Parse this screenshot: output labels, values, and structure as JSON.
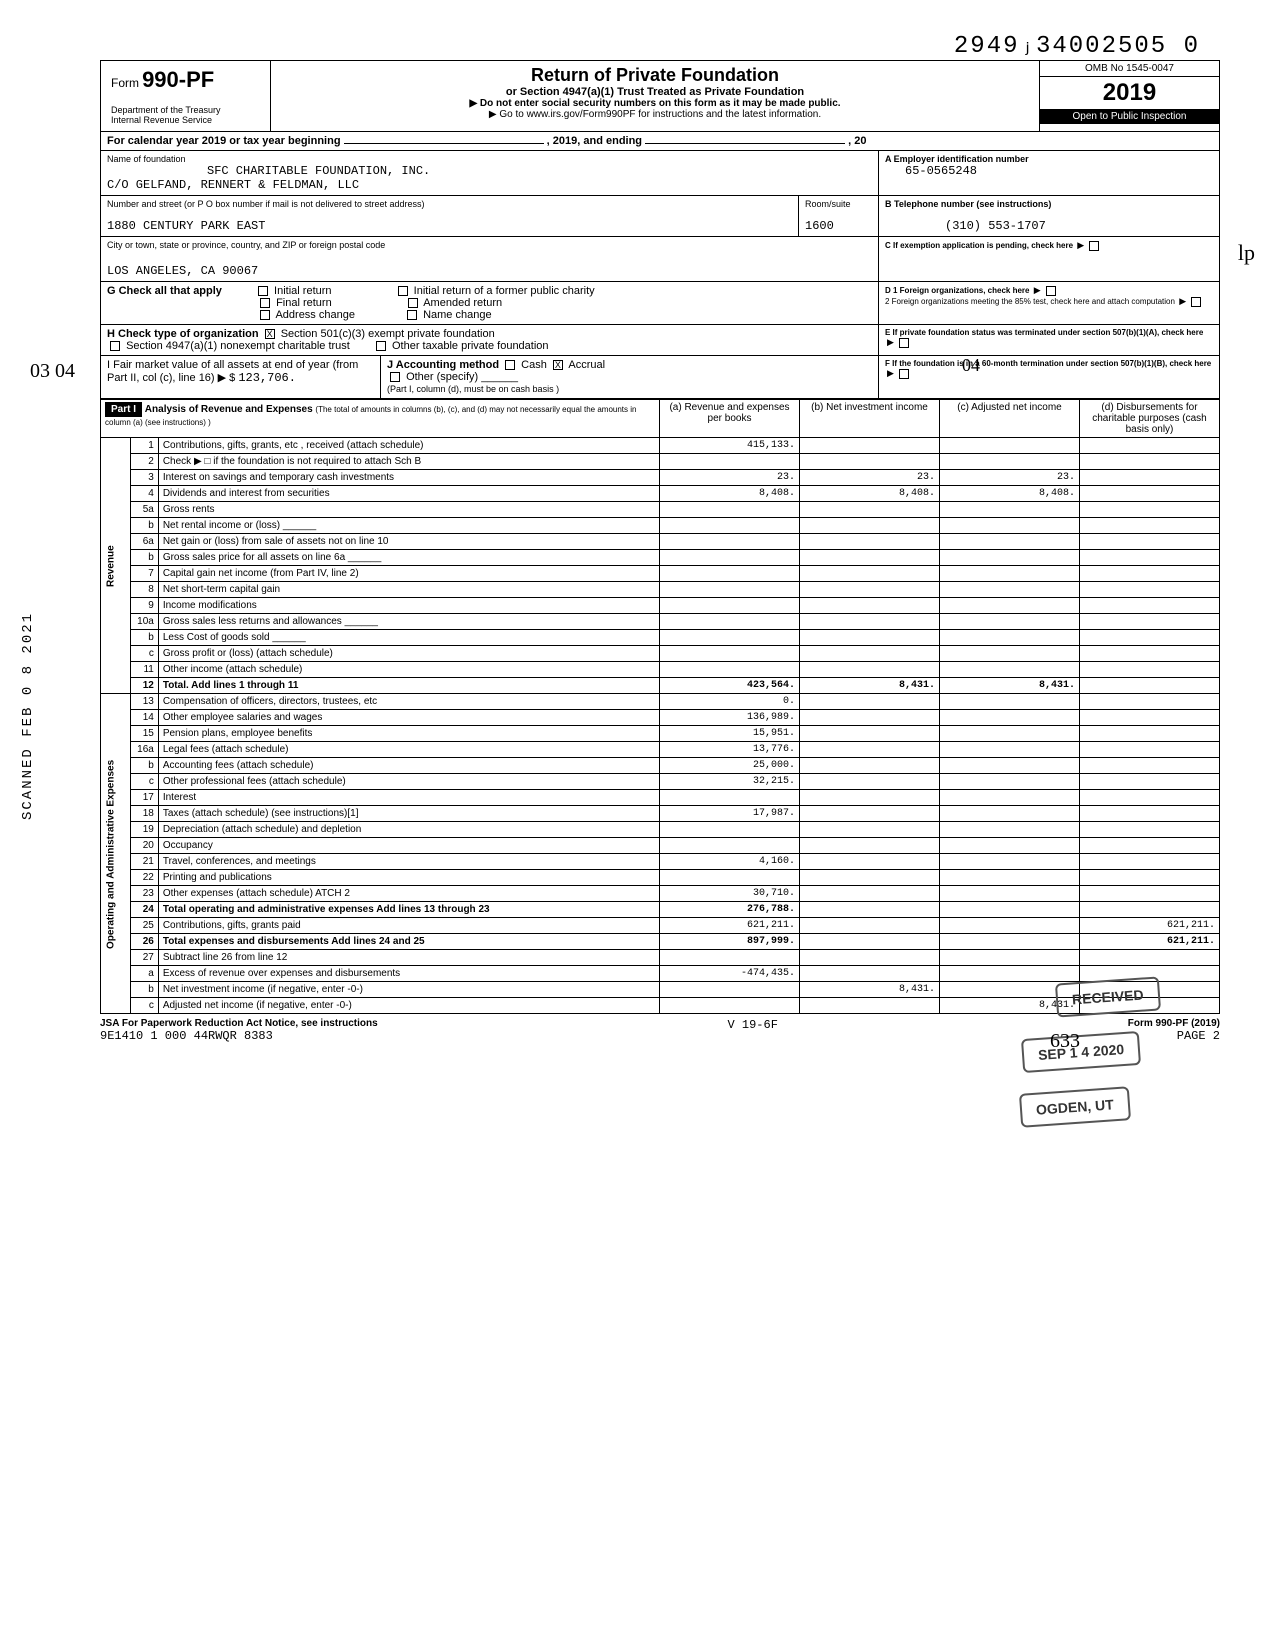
{
  "document_id": "2949ⱼ34002505  0",
  "scanned_label": "SCANNED FEB 0 8 2021",
  "handwritten_margin": "03\n04",
  "handwritten_04": "04",
  "handwritten_lp": "lp",
  "form": {
    "prefix": "Form",
    "number": "990-PF",
    "dept": "Department of the Treasury\nInternal Revenue Service",
    "title": "Return of Private Foundation",
    "subtitle": "or Section 4947(a)(1) Trust Treated as Private Foundation",
    "note1": "▶ Do not enter social security numbers on this form as it may be made public.",
    "note2": "▶ Go to www.irs.gov/Form990PF for instructions and the latest information.",
    "omb": "OMB No 1545-0047",
    "year": "2019",
    "open_text": "Open to Public Inspection"
  },
  "calendar_line": "For calendar year 2019 or tax year beginning",
  "calendar_mid": ", 2019, and ending",
  "calendar_end": ", 20",
  "foundation": {
    "name_label": "Name of foundation",
    "name": "SFC CHARITABLE FOUNDATION, INC.",
    "care_of": "C/O GELFAND, RENNERT & FELDMAN, LLC",
    "addr_label": "Number and street (or P O box number if mail is not delivered to street address)",
    "street": "1880 CENTURY PARK EAST",
    "room_label": "Room/suite",
    "room": "1600",
    "city_label": "City or town, state or province, country, and ZIP or foreign postal code",
    "city": "LOS ANGELES, CA 90067",
    "ein_label": "A  Employer identification number",
    "ein": "65-0565248",
    "phone_label": "B  Telephone number (see instructions)",
    "phone": "(310) 553-1707",
    "c_label": "C  If exemption application is pending, check here",
    "d1_label": "D 1  Foreign organizations, check here",
    "d2_label": "2  Foreign organizations meeting the 85% test, check here and attach computation",
    "e_label": "E  If private foundation status was terminated under section 507(b)(1)(A), check here",
    "f_label": "F  If the foundation is in a 60-month termination under section 507(b)(1)(B), check here"
  },
  "g_label": "G  Check all that apply",
  "g_opts": {
    "initial": "Initial return",
    "initial_former": "Initial return of a former public charity",
    "final": "Final return",
    "amended": "Amended return",
    "addr_change": "Address change",
    "name_change": "Name change"
  },
  "h_label": "H  Check type of organization",
  "h_opts": {
    "501c3": "Section 501(c)(3) exempt private foundation",
    "4947": "Section 4947(a)(1) nonexempt charitable trust",
    "other_tax": "Other taxable private foundation"
  },
  "i_label": "I  Fair market value of all assets at end of year (from Part II, col (c), line 16) ▶ $",
  "i_value": "123,706.",
  "j_label": "J Accounting method",
  "j_cash": "Cash",
  "j_accrual": "Accrual",
  "j_other": "Other (specify)",
  "j_note": "(Part I, column (d), must be on cash basis )",
  "part1": {
    "label": "Part I",
    "title": "Analysis of Revenue and Expenses",
    "note": "(The total of amounts in columns (b), (c), and (d) may not necessarily equal the amounts in column (a) (see instructions) )",
    "col_a": "(a) Revenue and expenses per books",
    "col_b": "(b) Net investment income",
    "col_c": "(c) Adjusted net income",
    "col_d": "(d) Disbursements for charitable purposes (cash basis only)"
  },
  "section_labels": {
    "revenue": "Revenue",
    "expenses": "Operating and Administrative Expenses"
  },
  "lines": [
    {
      "num": "1",
      "desc": "Contributions, gifts, grants, etc , received (attach schedule)",
      "a": "415,133.",
      "b": "",
      "c": "",
      "d": ""
    },
    {
      "num": "2",
      "desc": "Check ▶ □ if the foundation is not required to attach Sch B",
      "a": "",
      "b": "",
      "c": "",
      "d": ""
    },
    {
      "num": "3",
      "desc": "Interest on savings and temporary cash investments",
      "a": "23.",
      "b": "23.",
      "c": "23.",
      "d": ""
    },
    {
      "num": "4",
      "desc": "Dividends and interest from securities",
      "a": "8,408.",
      "b": "8,408.",
      "c": "8,408.",
      "d": ""
    },
    {
      "num": "5a",
      "desc": "Gross rents",
      "a": "",
      "b": "",
      "c": "",
      "d": ""
    },
    {
      "num": "b",
      "desc": "Net rental income or (loss) ______",
      "a": "",
      "b": "",
      "c": "",
      "d": ""
    },
    {
      "num": "6a",
      "desc": "Net gain or (loss) from sale of assets not on line 10",
      "a": "",
      "b": "",
      "c": "",
      "d": ""
    },
    {
      "num": "b",
      "desc": "Gross sales price for all assets on line 6a ______",
      "a": "",
      "b": "",
      "c": "",
      "d": ""
    },
    {
      "num": "7",
      "desc": "Capital gain net income (from Part IV, line 2)",
      "a": "",
      "b": "",
      "c": "",
      "d": ""
    },
    {
      "num": "8",
      "desc": "Net short-term capital gain",
      "a": "",
      "b": "",
      "c": "",
      "d": ""
    },
    {
      "num": "9",
      "desc": "Income modifications",
      "a": "",
      "b": "",
      "c": "",
      "d": ""
    },
    {
      "num": "10a",
      "desc": "Gross sales less returns and allowances ______",
      "a": "",
      "b": "",
      "c": "",
      "d": ""
    },
    {
      "num": "b",
      "desc": "Less Cost of goods sold ______",
      "a": "",
      "b": "",
      "c": "",
      "d": ""
    },
    {
      "num": "c",
      "desc": "Gross profit or (loss) (attach schedule)",
      "a": "",
      "b": "",
      "c": "",
      "d": ""
    },
    {
      "num": "11",
      "desc": "Other income (attach schedule)",
      "a": "",
      "b": "",
      "c": "",
      "d": ""
    },
    {
      "num": "12",
      "desc": "Total. Add lines 1 through 11",
      "a": "423,564.",
      "b": "8,431.",
      "c": "8,431.",
      "d": "",
      "bold": true
    },
    {
      "num": "13",
      "desc": "Compensation of officers, directors, trustees, etc",
      "a": "0.",
      "b": "",
      "c": "",
      "d": ""
    },
    {
      "num": "14",
      "desc": "Other employee salaries and wages",
      "a": "136,989.",
      "b": "",
      "c": "",
      "d": ""
    },
    {
      "num": "15",
      "desc": "Pension plans, employee benefits",
      "a": "15,951.",
      "b": "",
      "c": "",
      "d": ""
    },
    {
      "num": "16a",
      "desc": "Legal fees (attach schedule)",
      "a": "13,776.",
      "b": "",
      "c": "",
      "d": ""
    },
    {
      "num": "b",
      "desc": "Accounting fees (attach schedule)",
      "a": "25,000.",
      "b": "",
      "c": "",
      "d": ""
    },
    {
      "num": "c",
      "desc": "Other professional fees (attach schedule)",
      "a": "32,215.",
      "b": "",
      "c": "",
      "d": ""
    },
    {
      "num": "17",
      "desc": "Interest",
      "a": "",
      "b": "",
      "c": "",
      "d": ""
    },
    {
      "num": "18",
      "desc": "Taxes (attach schedule) (see instructions)[1]",
      "a": "17,987.",
      "b": "",
      "c": "",
      "d": ""
    },
    {
      "num": "19",
      "desc": "Depreciation (attach schedule) and depletion",
      "a": "",
      "b": "",
      "c": "",
      "d": ""
    },
    {
      "num": "20",
      "desc": "Occupancy",
      "a": "",
      "b": "",
      "c": "",
      "d": ""
    },
    {
      "num": "21",
      "desc": "Travel, conferences, and meetings",
      "a": "4,160.",
      "b": "",
      "c": "",
      "d": ""
    },
    {
      "num": "22",
      "desc": "Printing and publications",
      "a": "",
      "b": "",
      "c": "",
      "d": ""
    },
    {
      "num": "23",
      "desc": "Other expenses (attach schedule) ATCH 2",
      "a": "30,710.",
      "b": "",
      "c": "",
      "d": ""
    },
    {
      "num": "24",
      "desc": "Total operating and administrative expenses Add lines 13 through 23",
      "a": "276,788.",
      "b": "",
      "c": "",
      "d": "",
      "bold": true
    },
    {
      "num": "25",
      "desc": "Contributions, gifts, grants paid",
      "a": "621,211.",
      "b": "",
      "c": "",
      "d": "621,211."
    },
    {
      "num": "26",
      "desc": "Total expenses and disbursements Add lines 24 and 25",
      "a": "897,999.",
      "b": "",
      "c": "",
      "d": "621,211.",
      "bold": true
    },
    {
      "num": "27",
      "desc": "Subtract line 26 from line 12",
      "a": "",
      "b": "",
      "c": "",
      "d": ""
    },
    {
      "num": "a",
      "desc": "Excess of revenue over expenses and disbursements",
      "a": "-474,435.",
      "b": "",
      "c": "",
      "d": ""
    },
    {
      "num": "b",
      "desc": "Net investment income (if negative, enter -0-)",
      "a": "",
      "b": "8,431.",
      "c": "",
      "d": ""
    },
    {
      "num": "c",
      "desc": "Adjusted net income (if negative, enter -0-)",
      "a": "",
      "b": "",
      "c": "8,431.",
      "d": ""
    }
  ],
  "footer": {
    "paperwork": "JSA For Paperwork Reduction Act Notice, see instructions",
    "code": "9E1410 1 000  44RWQR 8383",
    "version": "V 19-6F",
    "form_ref": "Form 990-PF (2019)",
    "page": "PAGE 2"
  },
  "stamps": {
    "received": "RECEIVED",
    "sep": "SEP 1 4 2020",
    "ogden": "OGDEN, UT"
  },
  "page_handwritten": "633"
}
